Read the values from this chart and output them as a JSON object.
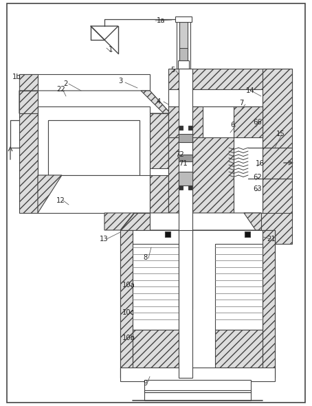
{
  "bg_color": "#ffffff",
  "line_color": "#444444",
  "lw": 0.8,
  "labels": [
    [
      "1",
      158,
      72
    ],
    [
      "1a",
      228,
      30
    ],
    [
      "1b",
      18,
      112
    ],
    [
      "2",
      92,
      122
    ],
    [
      "3",
      172,
      118
    ],
    [
      "4",
      228,
      148
    ],
    [
      "5",
      248,
      102
    ],
    [
      "6",
      335,
      182
    ],
    [
      "7",
      348,
      150
    ],
    [
      "8",
      208,
      375
    ],
    [
      "9",
      208,
      558
    ],
    [
      "10a",
      178,
      415
    ],
    [
      "10b",
      178,
      492
    ],
    [
      "10c",
      178,
      455
    ],
    [
      "12",
      82,
      292
    ],
    [
      "13",
      145,
      348
    ],
    [
      "14",
      358,
      132
    ],
    [
      "15",
      402,
      195
    ],
    [
      "16",
      372,
      238
    ],
    [
      "21",
      388,
      348
    ],
    [
      "22",
      82,
      130
    ],
    [
      "62",
      368,
      258
    ],
    [
      "63",
      368,
      275
    ],
    [
      "66",
      368,
      178
    ],
    [
      "71",
      260,
      238
    ],
    [
      "72",
      255,
      225
    ]
  ]
}
